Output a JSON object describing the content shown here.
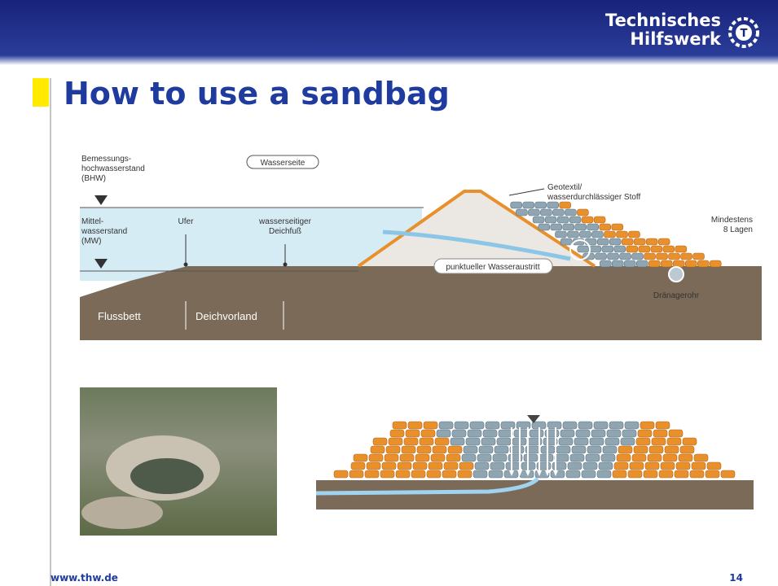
{
  "header": {
    "brand": [
      "Technisches",
      "Hilfswerk"
    ]
  },
  "title": "How to use a sandbag",
  "diagram": {
    "labels": {
      "bhw": [
        "Bemessungs-",
        "hochwasserstand",
        "(BHW)"
      ],
      "side": "Wasserseite",
      "mw": [
        "Mittel-",
        "wasserstand",
        "(MW)"
      ],
      "bank": "Ufer",
      "foot": [
        "wasserseitiger",
        "Deichfuß"
      ],
      "geotextile": [
        "Geotextil/",
        "wasserdurchlässiger Stoff"
      ],
      "layers": [
        "Mindestens",
        "8 Lagen"
      ],
      "seepage": "punktueller Wasseraustritt",
      "drain": "Dränagerohr",
      "riverbed": "Flussbett",
      "foreland": "Deichvorland"
    }
  },
  "footer": {
    "url": "www.thw.de",
    "page": "14"
  }
}
